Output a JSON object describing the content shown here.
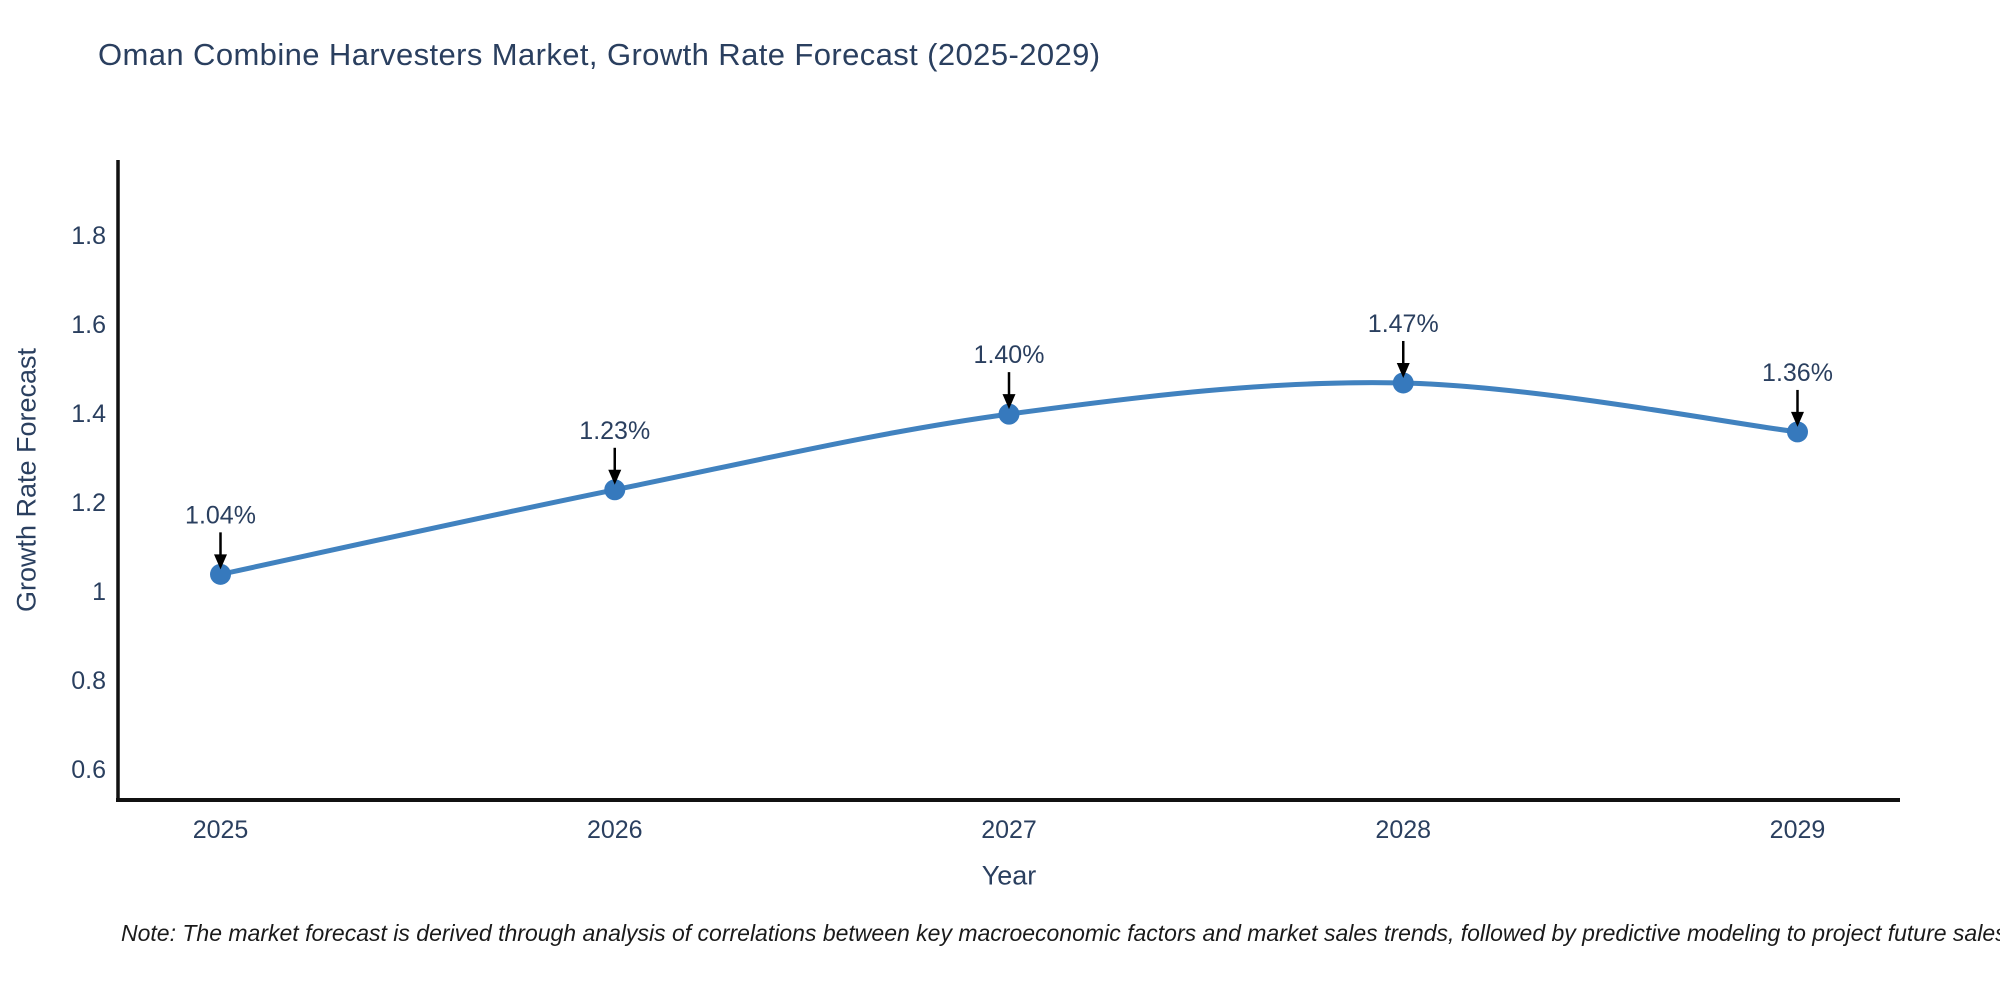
{
  "title": "Oman Combine Harvesters Market, Growth Rate Forecast (2025-2029)",
  "note": "Note: The market forecast is derived through analysis of correlations between key macroeconomic factors and market sales trends, followed by predictive modeling to project future sales",
  "chart_data": {
    "type": "line",
    "title": "Oman Combine Harvesters Market, Growth Rate Forecast (2025-2029)",
    "x": [
      2025,
      2026,
      2027,
      2028,
      2029
    ],
    "series": [
      {
        "name": "Growth Rate Forecast",
        "values": [
          1.04,
          1.23,
          1.4,
          1.47,
          1.36
        ]
      }
    ],
    "point_labels": [
      "1.04%",
      "1.23%",
      "1.40%",
      "1.47%",
      "1.36%"
    ],
    "xlabel": "Year",
    "ylabel": "Growth Rate Forecast",
    "xtick_labels": [
      "2025",
      "2026",
      "2027",
      "2028",
      "2029"
    ],
    "ytick_values": [
      0.6,
      0.8,
      1,
      1.2,
      1.4,
      1.6,
      1.8
    ],
    "ytick_labels": [
      "0.6",
      "0.8",
      "1",
      "1.2",
      "1.4",
      "1.6",
      "1.8"
    ],
    "xlim": [
      2024.74,
      2029.26
    ],
    "ylim": [
      0.533,
      1.971
    ],
    "line_shape": "spline",
    "grid": false,
    "legend_position": "none",
    "annotations_have_arrows": true,
    "colors": {
      "line": "#4182bf",
      "marker": "#3679bd",
      "axis_line": "#111111",
      "tick_text": "#2a3f5f",
      "annotation_text": "#2a3f5f",
      "annotation_arrow": "#000000"
    }
  }
}
